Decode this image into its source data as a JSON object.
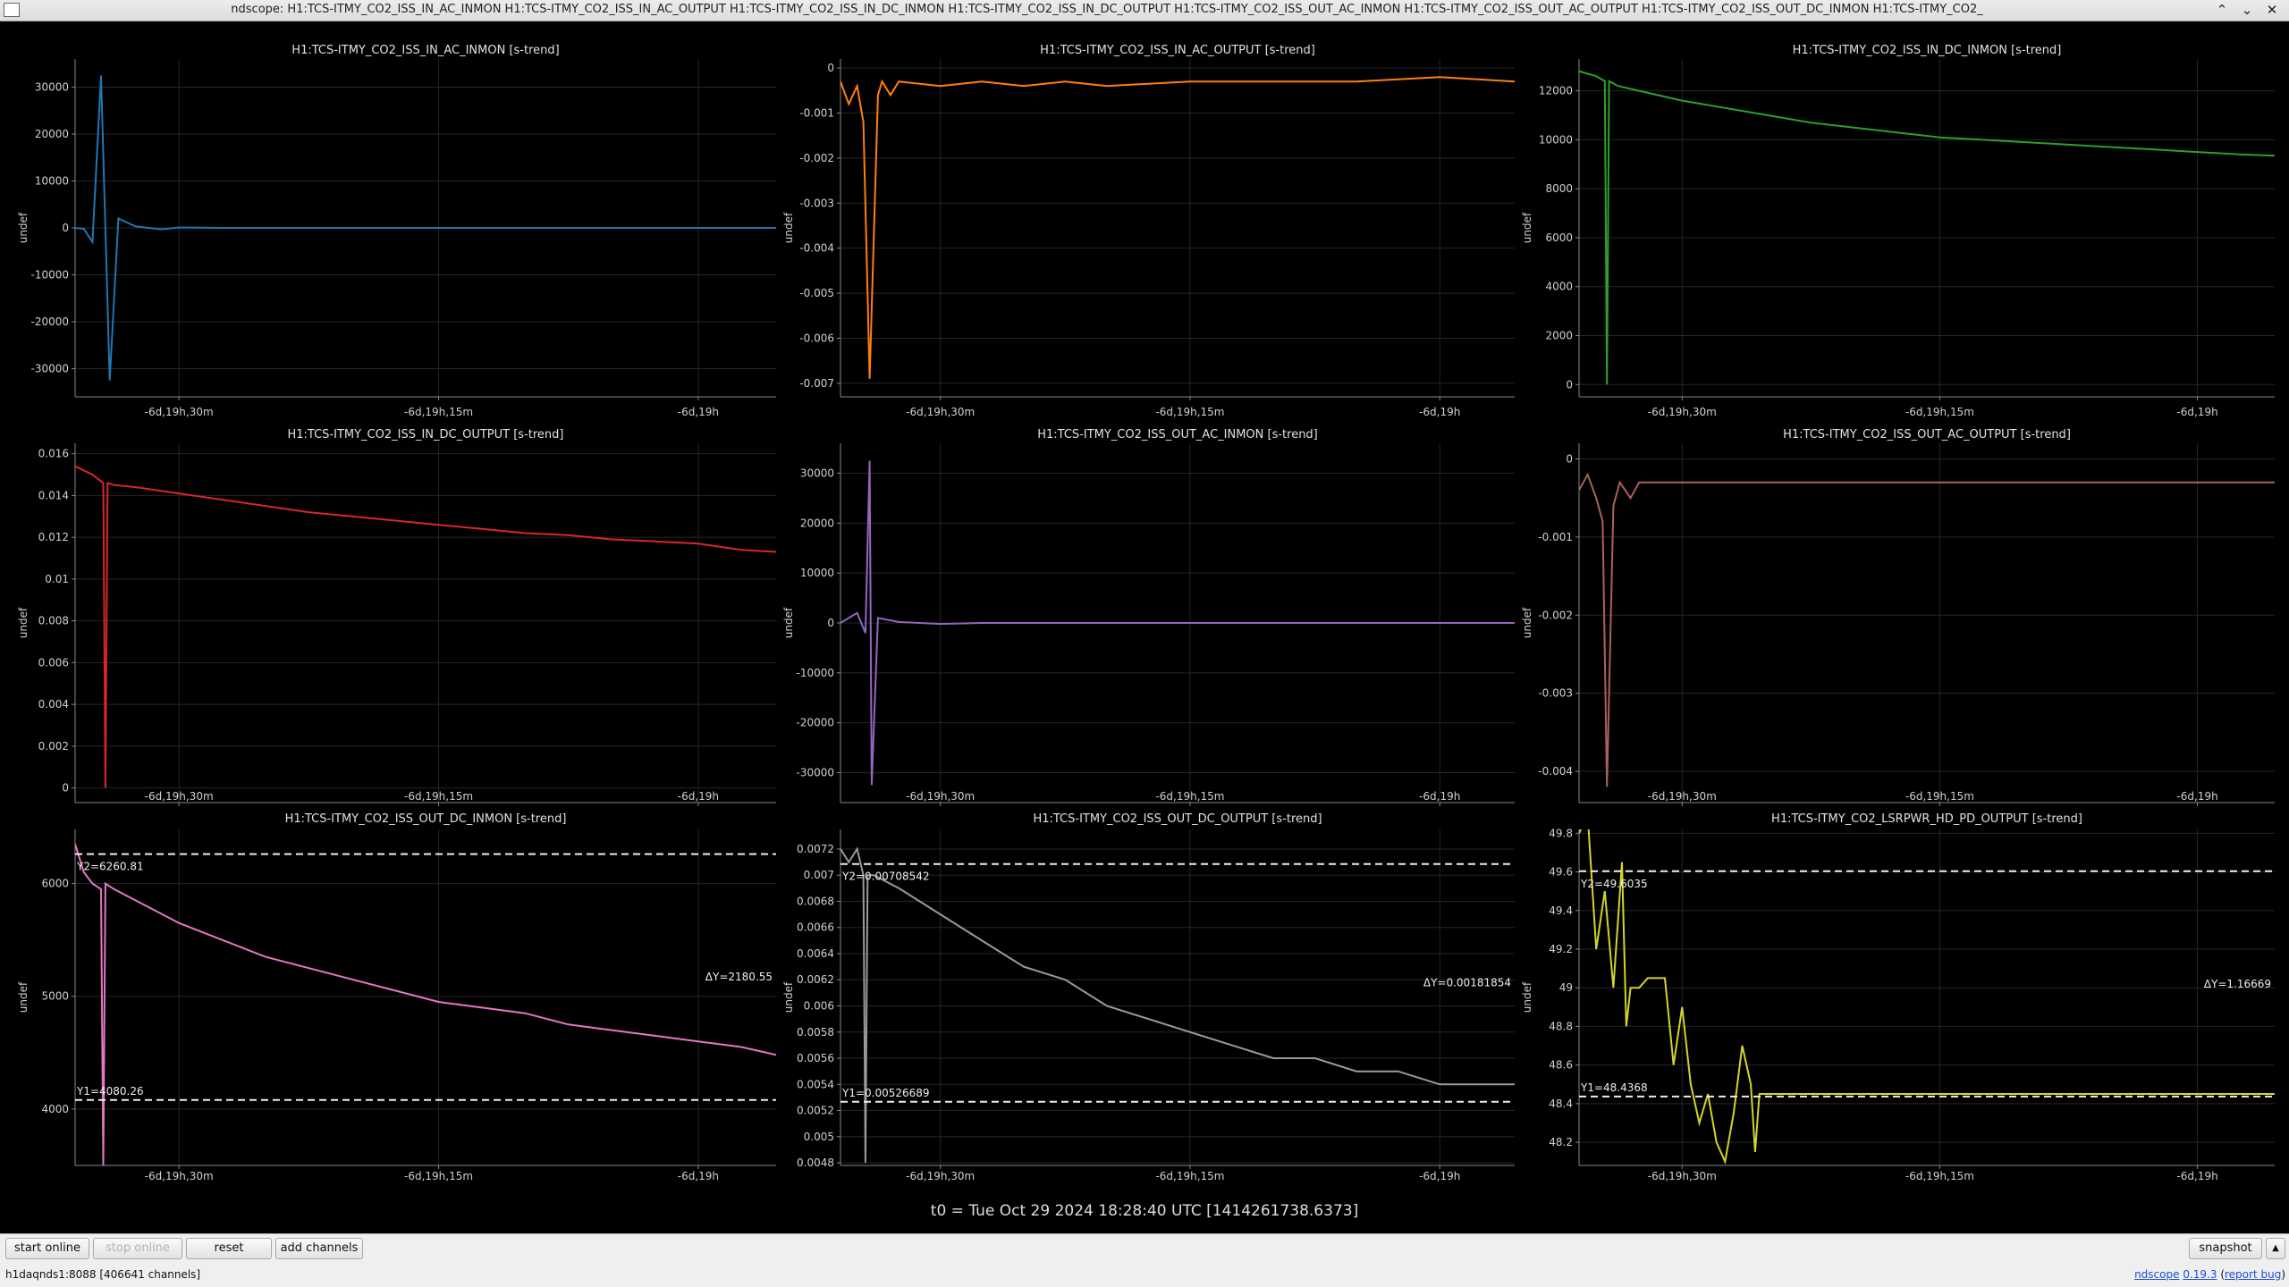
{
  "window": {
    "title": "ndscope: H1:TCS-ITMY_CO2_ISS_IN_AC_INMON H1:TCS-ITMY_CO2_ISS_IN_AC_OUTPUT H1:TCS-ITMY_CO2_ISS_IN_DC_INMON H1:TCS-ITMY_CO2_ISS_IN_DC_OUTPUT H1:TCS-ITMY_CO2_ISS_OUT_AC_INMON H1:TCS-ITMY_CO2_ISS_OUT_AC_OUTPUT H1:TCS-ITMY_CO2_ISS_OUT_DC_INMON H1:TCS-ITMY_CO2_",
    "minimize_icon": "⌃",
    "maximize_icon": "⌄",
    "close_icon": "✕"
  },
  "t0_label": "t0 = Tue Oct 29 2024 18:28:40 UTC [1414261738.6373]",
  "toolbar": {
    "start_online": "start online",
    "stop_online": "stop online",
    "reset": "reset",
    "add_channels": "add channels",
    "snapshot": "snapshot",
    "expand_icon": "▲"
  },
  "status": {
    "server": "h1daqnds1:8088",
    "channels": "[406641 channels]",
    "ndscope_link": "ndscope",
    "version": "0.19.3",
    "report_bug": "report bug"
  },
  "chart_data": [
    {
      "type": "line",
      "title": "H1:TCS-ITMY_CO2_ISS_IN_AC_INMON [s-trend]",
      "ylabel": "undef",
      "color": "#1f77b4",
      "ylim": [
        -36000,
        36000
      ],
      "yticks": [
        -30000,
        -20000,
        -10000,
        0,
        10000,
        20000,
        30000
      ],
      "ytick_labels": [
        "-30000",
        "-20000",
        "-10000",
        "0",
        "10000",
        "20000",
        "30000"
      ],
      "xlim": [
        -2640,
        -1020
      ],
      "xticks": [
        -2400,
        -1800,
        -1200
      ],
      "xtick_labels": [
        "-6d,19h,30m",
        "-6d,19h,15m",
        "-6d,19h"
      ],
      "x": [
        -2640,
        -2620,
        -2600,
        -2580,
        -2560,
        -2540,
        -2500,
        -2440,
        -2400,
        -2300,
        -2200,
        -2100,
        -2000,
        -1800,
        -1600,
        -1400,
        -1200,
        -1020
      ],
      "y": [
        0,
        -200,
        -3000,
        32500,
        -32500,
        2000,
        300,
        -300,
        100,
        0,
        0,
        0,
        0,
        0,
        0,
        0,
        0,
        0
      ]
    },
    {
      "type": "line",
      "title": "H1:TCS-ITMY_CO2_ISS_IN_AC_OUTPUT [s-trend]",
      "ylabel": "undef",
      "color": "#ff7f0e",
      "ylim": [
        -0.0073,
        0.0002
      ],
      "yticks": [
        -0.007,
        -0.006,
        -0.005,
        -0.004,
        -0.003,
        -0.002,
        -0.001,
        0
      ],
      "ytick_labels": [
        "-0.007",
        "-0.006",
        "-0.005",
        "-0.004",
        "-0.003",
        "-0.002",
        "-0.001",
        "0"
      ],
      "xlim": [
        -2640,
        -1020
      ],
      "xticks": [
        -2400,
        -1800,
        -1200
      ],
      "xtick_labels": [
        "-6d,19h,30m",
        "-6d,19h,15m",
        "-6d,19h"
      ],
      "x": [
        -2640,
        -2620,
        -2600,
        -2585,
        -2570,
        -2550,
        -2540,
        -2520,
        -2500,
        -2400,
        -2300,
        -2200,
        -2100,
        -2000,
        -1800,
        -1600,
        -1400,
        -1200,
        -1020
      ],
      "y": [
        -0.0003,
        -0.0008,
        -0.0004,
        -0.0012,
        -0.0069,
        -0.0006,
        -0.0003,
        -0.0006,
        -0.0003,
        -0.0004,
        -0.0003,
        -0.0004,
        -0.0003,
        -0.0004,
        -0.0003,
        -0.0003,
        -0.0003,
        -0.0002,
        -0.0003
      ]
    },
    {
      "type": "line",
      "title": "H1:TCS-ITMY_CO2_ISS_IN_DC_INMON [s-trend]",
      "ylabel": "undef",
      "color": "#2ca02c",
      "ylim": [
        -500,
        13300
      ],
      "yticks": [
        0,
        2000,
        4000,
        6000,
        8000,
        10000,
        12000
      ],
      "ytick_labels": [
        "0",
        "2000",
        "4000",
        "6000",
        "8000",
        "10000",
        "12000"
      ],
      "xlim": [
        -2640,
        -1020
      ],
      "xticks": [
        -2400,
        -1800,
        -1200
      ],
      "xtick_labels": [
        "-6d,19h,30m",
        "-6d,19h,15m",
        "-6d,19h"
      ],
      "x": [
        -2640,
        -2600,
        -2580,
        -2575,
        -2570,
        -2550,
        -2500,
        -2400,
        -2300,
        -2200,
        -2100,
        -2000,
        -1900,
        -1800,
        -1700,
        -1600,
        -1500,
        -1400,
        -1300,
        -1200,
        -1100,
        -1020
      ],
      "y": [
        12800,
        12600,
        12400,
        0,
        12400,
        12200,
        12000,
        11600,
        11300,
        11000,
        10700,
        10500,
        10300,
        10100,
        10000,
        9900,
        9800,
        9700,
        9600,
        9500,
        9400,
        9350
      ]
    },
    {
      "type": "line",
      "title": "H1:TCS-ITMY_CO2_ISS_IN_DC_OUTPUT [s-trend]",
      "ylabel": "undef",
      "color": "#d62728",
      "ylim": [
        -0.0007,
        0.0165
      ],
      "yticks": [
        0,
        0.002,
        0.004,
        0.006,
        0.008,
        0.01,
        0.012,
        0.014,
        0.016
      ],
      "ytick_labels": [
        "0",
        "0.002",
        "0.004",
        "0.006",
        "0.008",
        "0.01",
        "0.012",
        "0.014",
        "0.016"
      ],
      "xlim": [
        -2640,
        -1020
      ],
      "xticks": [
        -2400,
        -1800,
        -1200
      ],
      "xtick_labels": [
        "-6d,19h,30m",
        "-6d,19h,15m",
        "-6d,19h"
      ],
      "x": [
        -2640,
        -2600,
        -2575,
        -2570,
        -2565,
        -2550,
        -2500,
        -2400,
        -2300,
        -2200,
        -2100,
        -2000,
        -1900,
        -1800,
        -1700,
        -1600,
        -1500,
        -1400,
        -1300,
        -1200,
        -1100,
        -1020
      ],
      "y": [
        0.0154,
        0.015,
        0.0146,
        0,
        0.0146,
        0.0145,
        0.0144,
        0.0141,
        0.0138,
        0.0135,
        0.0132,
        0.013,
        0.0128,
        0.0126,
        0.0124,
        0.0122,
        0.0121,
        0.0119,
        0.0118,
        0.0117,
        0.0114,
        0.0113
      ]
    },
    {
      "type": "line",
      "title": "H1:TCS-ITMY_CO2_ISS_OUT_AC_INMON [s-trend]",
      "ylabel": "undef",
      "color": "#9467bd",
      "ylim": [
        -36000,
        36000
      ],
      "yticks": [
        -30000,
        -20000,
        -10000,
        0,
        10000,
        20000,
        30000
      ],
      "ytick_labels": [
        "-30000",
        "-20000",
        "-10000",
        "0",
        "10000",
        "20000",
        "30000"
      ],
      "xlim": [
        -2640,
        -1020
      ],
      "xticks": [
        -2400,
        -1800,
        -1200
      ],
      "xtick_labels": [
        "-6d,19h,30m",
        "-6d,19h,15m",
        "-6d,19h"
      ],
      "x": [
        -2640,
        -2600,
        -2580,
        -2570,
        -2565,
        -2550,
        -2500,
        -2400,
        -2300,
        -2200,
        -2100,
        -2000,
        -1800,
        -1600,
        -1400,
        -1200,
        -1020
      ],
      "y": [
        0,
        2000,
        -2000,
        32500,
        -32500,
        1000,
        200,
        -200,
        0,
        0,
        0,
        0,
        0,
        0,
        0,
        0,
        0
      ]
    },
    {
      "type": "line",
      "title": "H1:TCS-ITMY_CO2_ISS_OUT_AC_OUTPUT [s-trend]",
      "ylabel": "undef",
      "color": "#a8625c",
      "ylim": [
        -0.0044,
        0.0002
      ],
      "yticks": [
        -0.004,
        -0.003,
        -0.002,
        -0.001,
        0
      ],
      "ytick_labels": [
        "-0.004",
        "-0.003",
        "-0.002",
        "-0.001",
        "0"
      ],
      "xlim": [
        -2640,
        -1020
      ],
      "xticks": [
        -2400,
        -1800,
        -1200
      ],
      "xtick_labels": [
        "-6d,19h,30m",
        "-6d,19h,15m",
        "-6d,19h"
      ],
      "x": [
        -2640,
        -2620,
        -2600,
        -2585,
        -2575,
        -2560,
        -2545,
        -2520,
        -2500,
        -2400,
        -2300,
        -2200,
        -2100,
        -2000,
        -1800,
        -1600,
        -1400,
        -1200,
        -1020
      ],
      "y": [
        -0.0004,
        -0.0002,
        -0.0005,
        -0.0008,
        -0.0042,
        -0.0006,
        -0.0003,
        -0.0005,
        -0.0003,
        -0.0003,
        -0.0003,
        -0.0003,
        -0.0003,
        -0.0003,
        -0.0003,
        -0.0003,
        -0.0003,
        -0.0003,
        -0.0003
      ]
    },
    {
      "type": "line",
      "title": "H1:TCS-ITMY_CO2_ISS_OUT_DC_INMON [s-trend]",
      "ylabel": "undef",
      "color": "#e377c2",
      "ylim": [
        3500,
        6480
      ],
      "yticks": [
        4000,
        5000,
        6000
      ],
      "ytick_labels": [
        "4000",
        "5000",
        "6000"
      ],
      "xlim": [
        -2640,
        -1020
      ],
      "xticks": [
        -2400,
        -1800,
        -1200
      ],
      "xtick_labels": [
        "-6d,19h,30m",
        "-6d,19h,15m",
        "-6d,19h"
      ],
      "x": [
        -2640,
        -2620,
        -2600,
        -2580,
        -2575,
        -2570,
        -2550,
        -2500,
        -2400,
        -2300,
        -2200,
        -2100,
        -2000,
        -1900,
        -1800,
        -1700,
        -1600,
        -1500,
        -1400,
        -1300,
        -1200,
        -1100,
        -1020
      ],
      "y": [
        6350,
        6100,
        6000,
        5950,
        3500,
        6000,
        5950,
        5850,
        5650,
        5500,
        5350,
        5250,
        5150,
        5050,
        4950,
        4900,
        4850,
        4750,
        4700,
        4650,
        4600,
        4550,
        4480
      ],
      "cursors": {
        "y1": 4080.26,
        "y2": 6260.81,
        "y1_label": "Y1=4080.26",
        "y2_label": "Y2=6260.81",
        "dy_label": "ΔY=2180.55"
      }
    },
    {
      "type": "line",
      "title": "H1:TCS-ITMY_CO2_ISS_OUT_DC_OUTPUT [s-trend]",
      "ylabel": "undef",
      "color": "#9a9a9a",
      "ylim": [
        0.00478,
        0.00735
      ],
      "yticks": [
        0.0048,
        0.005,
        0.0052,
        0.0054,
        0.0056,
        0.0058,
        0.006,
        0.0062,
        0.0064,
        0.0066,
        0.0068,
        0.007,
        0.0072
      ],
      "ytick_labels": [
        "0.0048",
        "0.005",
        "0.0052",
        "0.0054",
        "0.0056",
        "0.0058",
        "0.006",
        "0.0062",
        "0.0064",
        "0.0066",
        "0.0068",
        "0.007",
        "0.0072"
      ],
      "xlim": [
        -2640,
        -1020
      ],
      "xticks": [
        -2400,
        -1800,
        -1200
      ],
      "xtick_labels": [
        "-6d,19h,30m",
        "-6d,19h,15m",
        "-6d,19h"
      ],
      "x": [
        -2640,
        -2620,
        -2600,
        -2585,
        -2580,
        -2575,
        -2560,
        -2500,
        -2400,
        -2300,
        -2200,
        -2100,
        -2000,
        -1900,
        -1800,
        -1700,
        -1600,
        -1500,
        -1400,
        -1300,
        -1200,
        -1100,
        -1020
      ],
      "y": [
        0.0072,
        0.0071,
        0.0072,
        0.007,
        0.0048,
        0.007,
        0.007,
        0.0069,
        0.0067,
        0.0065,
        0.0063,
        0.0062,
        0.006,
        0.0059,
        0.0058,
        0.0057,
        0.0056,
        0.0056,
        0.0055,
        0.0055,
        0.0054,
        0.0054,
        0.0054
      ],
      "cursors": {
        "y1": 0.00526689,
        "y2": 0.00708542,
        "y1_label": "Y1=0.00526689",
        "y2_label": "Y2=0.00708542",
        "dy_label": "ΔY=0.00181854"
      }
    },
    {
      "type": "line",
      "title": "H1:TCS-ITMY_CO2_LSRPWR_HD_PD_OUTPUT [s-trend]",
      "ylabel": "undef",
      "color": "#d4d42a",
      "ylim": [
        48.08,
        49.82
      ],
      "yticks": [
        48.2,
        48.4,
        48.6,
        48.8,
        49,
        49.2,
        49.4,
        49.6,
        49.8
      ],
      "ytick_labels": [
        "48.2",
        "48.4",
        "48.6",
        "48.8",
        "49",
        "49.2",
        "49.4",
        "49.6",
        "49.8"
      ],
      "xlim": [
        -2640,
        -1020
      ],
      "xticks": [
        -2400,
        -1800,
        -1200
      ],
      "xtick_labels": [
        "-6d,19h,30m",
        "-6d,19h,15m",
        "-6d,19h"
      ],
      "x": [
        -2640,
        -2620,
        -2600,
        -2580,
        -2560,
        -2540,
        -2530,
        -2520,
        -2500,
        -2480,
        -2460,
        -2440,
        -2420,
        -2400,
        -2380,
        -2360,
        -2340,
        -2320,
        -2300,
        -2280,
        -2260,
        -2240,
        -2230,
        -2220,
        -2200,
        -2100,
        -2000,
        -1800,
        -1600,
        -1400,
        -1200,
        -1020
      ],
      "y": [
        49.8,
        49.9,
        49.2,
        49.5,
        49.0,
        49.65,
        48.8,
        49.0,
        49.0,
        49.05,
        49.05,
        49.05,
        48.6,
        48.9,
        48.5,
        48.3,
        48.45,
        48.2,
        48.1,
        48.35,
        48.7,
        48.5,
        48.15,
        48.45,
        48.45,
        48.45,
        48.45,
        48.45,
        48.45,
        48.45,
        48.45,
        48.45
      ],
      "cursors": {
        "y1": 48.4368,
        "y2": 49.6035,
        "y1_label": "Y1=48.4368",
        "y2_label": "Y2=49.6035",
        "dy_label": "ΔY=1.16669"
      }
    }
  ]
}
